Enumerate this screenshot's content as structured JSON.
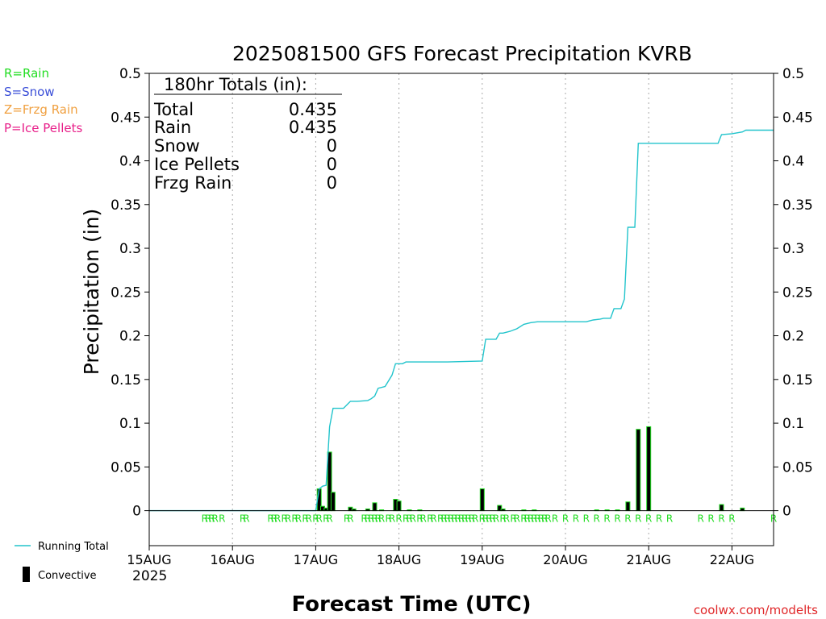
{
  "chart_data": {
    "type": "bar",
    "title": "2025081500 GFS Forecast Precipitation KVRB",
    "xlabel": "Forecast Time (UTC)",
    "ylabel": "Precipitation (in)",
    "credit": "coolwx.com/modelts",
    "ylim": [
      -0.04,
      0.5
    ],
    "xlim": [
      0,
      180
    ],
    "grid": "vertical dotted at each day",
    "yticks": [
      "0",
      "0.05",
      "0.1",
      "0.15",
      "0.2",
      "0.25",
      "0.3",
      "0.35",
      "0.4",
      "0.45",
      "0.5"
    ],
    "xticks": [
      {
        "label": "15AUG",
        "x": 0
      },
      {
        "label": "16AUG",
        "x": 24
      },
      {
        "label": "17AUG",
        "x": 48
      },
      {
        "label": "18AUG",
        "x": 72
      },
      {
        "label": "19AUG",
        "x": 96
      },
      {
        "label": "20AUG",
        "x": 120
      },
      {
        "label": "21AUG",
        "x": 144
      },
      {
        "label": "22AUG",
        "x": 168
      }
    ],
    "year_label": "2025",
    "type_legend": [
      {
        "text": "R=Rain",
        "color": "#22dd22"
      },
      {
        "text": "S=Snow",
        "color": "#3b4fd8"
      },
      {
        "text": "Z=Frzg Rain",
        "color": "#f0a040"
      },
      {
        "text": "P=Ice Pellets",
        "color": "#e8208a"
      }
    ],
    "series_legend": [
      {
        "text": "Running Total",
        "kind": "line",
        "color": "#22c4cc"
      },
      {
        "text": "Convective",
        "kind": "bar",
        "color": "#000000"
      }
    ],
    "totals": {
      "header": "180hr Totals (in):",
      "rows": [
        {
          "label": "Total",
          "value": "0.435"
        },
        {
          "label": "Rain",
          "value": "0.435"
        },
        {
          "label": "Snow",
          "value": "0"
        },
        {
          "label": "Ice Pellets",
          "value": "0"
        },
        {
          "label": "Frzg Rain",
          "value": "0"
        }
      ]
    },
    "precip_type_marks": {
      "letter": "R",
      "color": "#22dd22",
      "hours": [
        16,
        17,
        18,
        19,
        21,
        27,
        28,
        35,
        36,
        37,
        39,
        40,
        42,
        43,
        45,
        46,
        48,
        49,
        51,
        52,
        57,
        58,
        62,
        63,
        64,
        65,
        66,
        67,
        69,
        70,
        72,
        74,
        75,
        76,
        78,
        79,
        81,
        82,
        84,
        85,
        86,
        87,
        88,
        89,
        90,
        91,
        92,
        93,
        94,
        96,
        97,
        98,
        99,
        100,
        102,
        103,
        105,
        106,
        108,
        109,
        110,
        111,
        112,
        113,
        114,
        115,
        117,
        120,
        123,
        126,
        129,
        132,
        135,
        138,
        141,
        144,
        147,
        150,
        159,
        162,
        165,
        168,
        180
      ]
    },
    "bars": [
      {
        "x": 49,
        "value": 0.025
      },
      {
        "x": 50,
        "value": 0.005
      },
      {
        "x": 51,
        "value": 0.003
      },
      {
        "x": 52,
        "value": 0.067
      },
      {
        "x": 53,
        "value": 0.021
      },
      {
        "x": 58,
        "value": 0.004
      },
      {
        "x": 59,
        "value": 0.002
      },
      {
        "x": 63,
        "value": 0.002
      },
      {
        "x": 65,
        "value": 0.009
      },
      {
        "x": 67,
        "value": 0.001
      },
      {
        "x": 71,
        "value": 0.013
      },
      {
        "x": 72,
        "value": 0.011
      },
      {
        "x": 75,
        "value": 0.001
      },
      {
        "x": 78,
        "value": 0.001
      },
      {
        "x": 96,
        "value": 0.025
      },
      {
        "x": 101,
        "value": 0.006
      },
      {
        "x": 102,
        "value": 0.002
      },
      {
        "x": 108,
        "value": 0.001
      },
      {
        "x": 111,
        "value": 0.001
      },
      {
        "x": 129,
        "value": 0.001
      },
      {
        "x": 132,
        "value": 0.001
      },
      {
        "x": 135,
        "value": 0.001
      },
      {
        "x": 138,
        "value": 0.01
      },
      {
        "x": 141,
        "value": 0.093
      },
      {
        "x": 144,
        "value": 0.096
      },
      {
        "x": 165,
        "value": 0.007
      },
      {
        "x": 171,
        "value": 0.003
      }
    ],
    "running_total": {
      "name": "Running Total",
      "points": [
        [
          0,
          0
        ],
        [
          48,
          0
        ],
        [
          49,
          0.025
        ],
        [
          50,
          0.028
        ],
        [
          51,
          0.029
        ],
        [
          52,
          0.096
        ],
        [
          53,
          0.117
        ],
        [
          56,
          0.117
        ],
        [
          57,
          0.121
        ],
        [
          58,
          0.125
        ],
        [
          60,
          0.125
        ],
        [
          63,
          0.126
        ],
        [
          64,
          0.128
        ],
        [
          65,
          0.131
        ],
        [
          66,
          0.14
        ],
        [
          68,
          0.142
        ],
        [
          70,
          0.155
        ],
        [
          71,
          0.168
        ],
        [
          73,
          0.168
        ],
        [
          74,
          0.17
        ],
        [
          86,
          0.17
        ],
        [
          96,
          0.171
        ],
        [
          97,
          0.196
        ],
        [
          100,
          0.196
        ],
        [
          101,
          0.203
        ],
        [
          102,
          0.203
        ],
        [
          104,
          0.205
        ],
        [
          106,
          0.208
        ],
        [
          108,
          0.213
        ],
        [
          110,
          0.215
        ],
        [
          112,
          0.216
        ],
        [
          126,
          0.216
        ],
        [
          128,
          0.218
        ],
        [
          130,
          0.219
        ],
        [
          131,
          0.22
        ],
        [
          133,
          0.22
        ],
        [
          134,
          0.231
        ],
        [
          136,
          0.231
        ],
        [
          137,
          0.242
        ],
        [
          138,
          0.324
        ],
        [
          140,
          0.324
        ],
        [
          141,
          0.42
        ],
        [
          143,
          0.42
        ],
        [
          164,
          0.42
        ],
        [
          165,
          0.43
        ],
        [
          168,
          0.431
        ],
        [
          171,
          0.433
        ],
        [
          172,
          0.435
        ],
        [
          180,
          0.435
        ]
      ]
    }
  }
}
